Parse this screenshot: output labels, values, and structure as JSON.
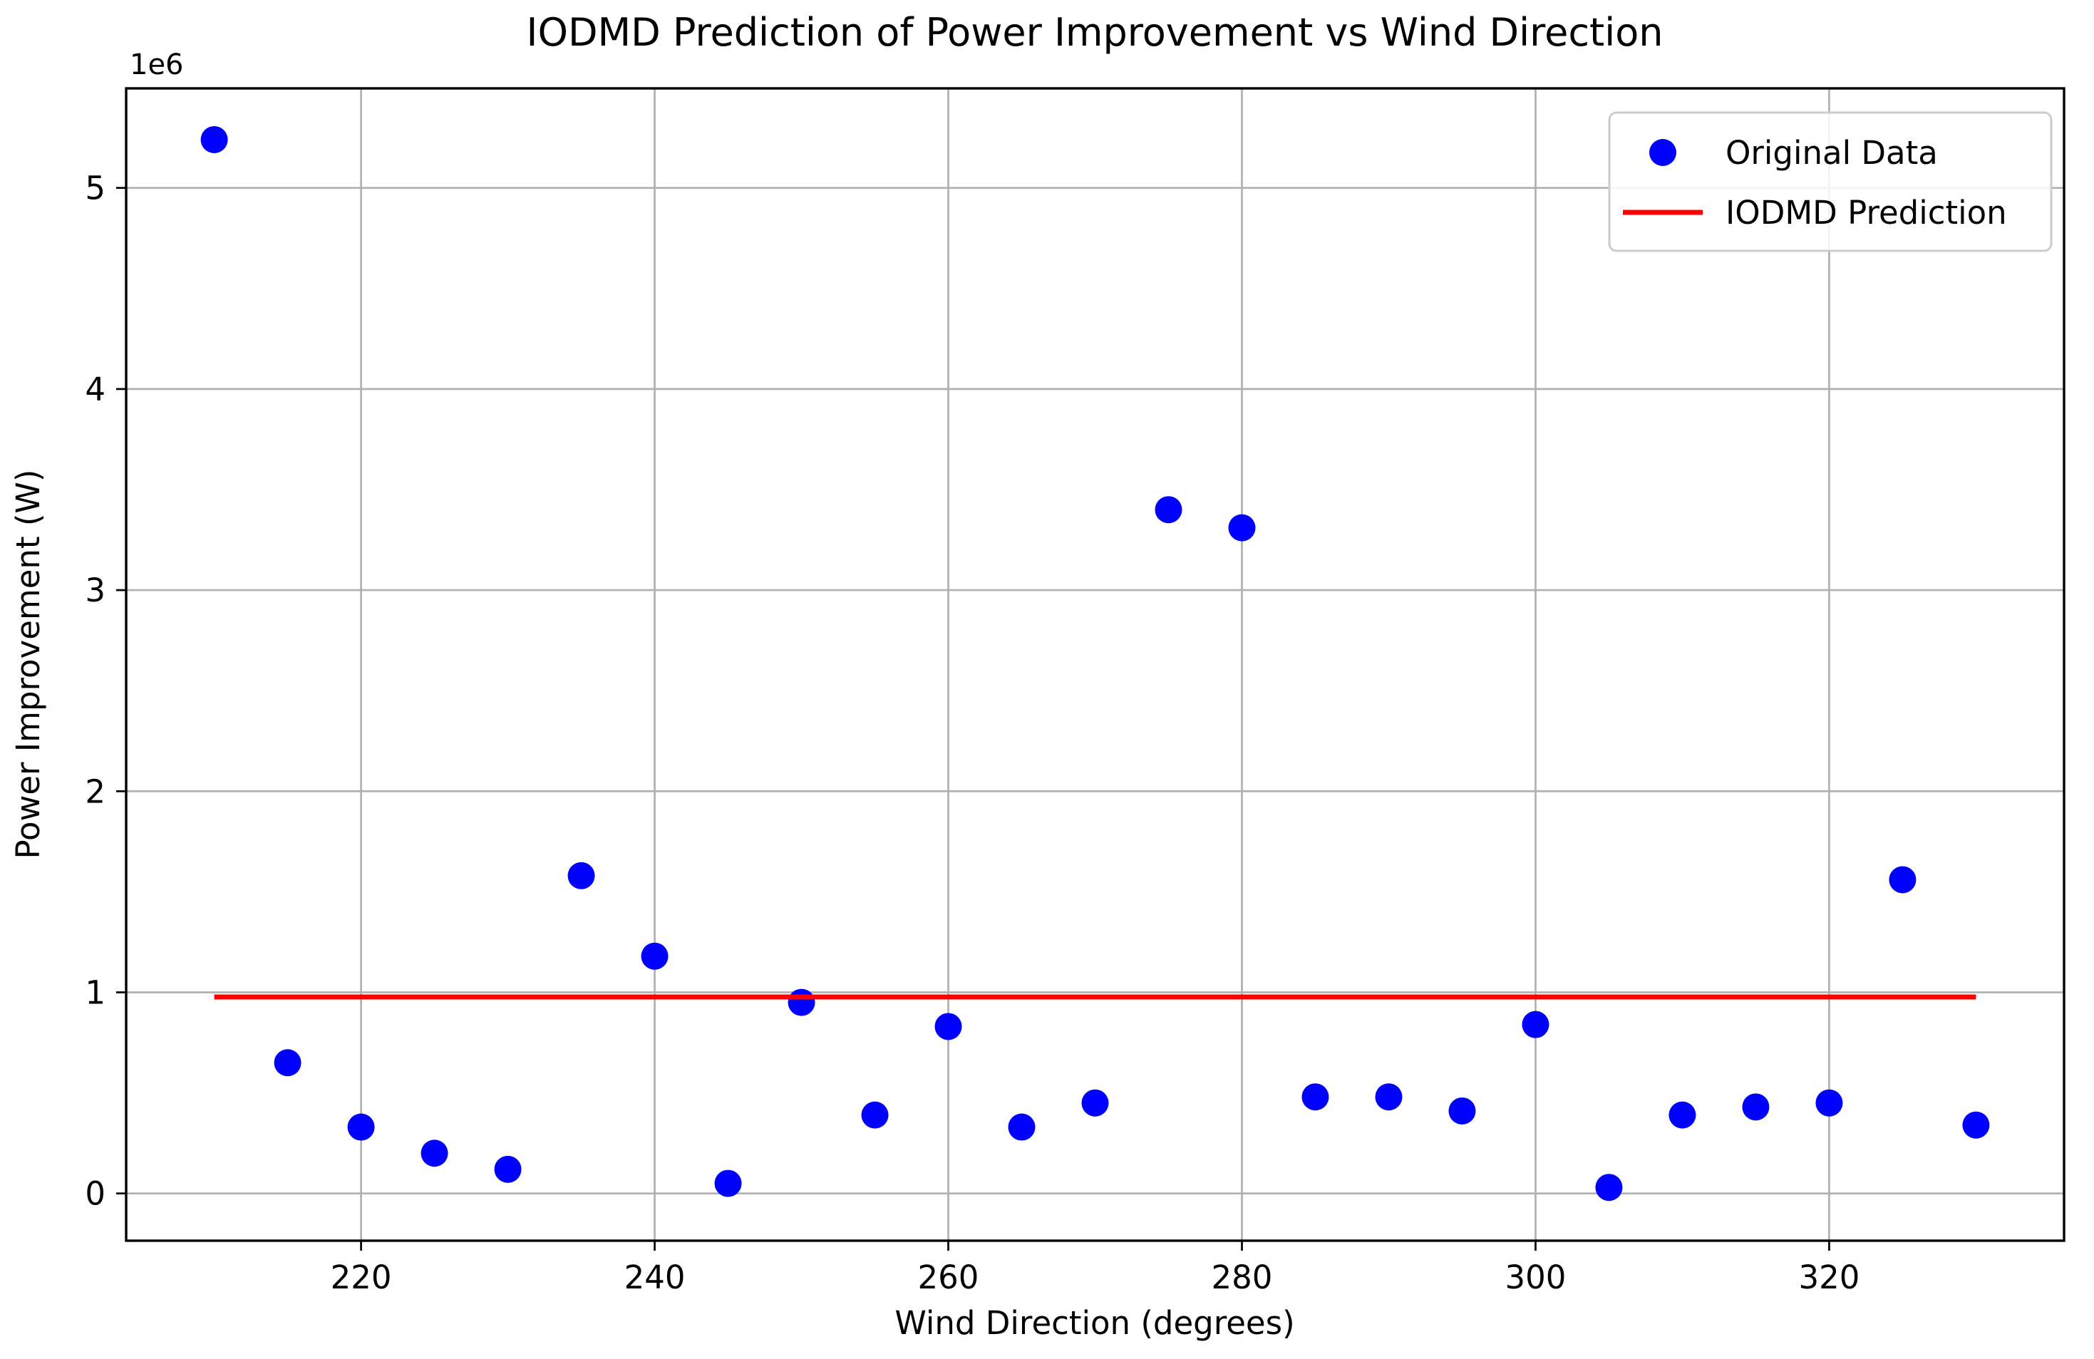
{
  "chart_data": {
    "type": "scatter",
    "title": "IODMD Prediction of Power Improvement vs Wind Direction",
    "xlabel": "Wind Direction (degrees)",
    "ylabel": "Power Improvement (W)",
    "y_offset_label": "1e6",
    "grid": true,
    "xlim": [
      204,
      336
    ],
    "ylim": [
      -235000,
      5495000
    ],
    "x_ticks": [
      220,
      240,
      260,
      280,
      300,
      320
    ],
    "x_tick_labels": [
      "220",
      "240",
      "260",
      "280",
      "300",
      "320"
    ],
    "y_ticks": [
      0,
      1000000,
      2000000,
      3000000,
      4000000,
      5000000
    ],
    "y_tick_labels": [
      "0",
      "1",
      "2",
      "3",
      "4",
      "5"
    ],
    "colors": {
      "scatter": "#0000ff",
      "prediction_line": "#ff0000",
      "grid": "#b0b0b0",
      "spine": "#000000",
      "legend_border": "#cccccc"
    },
    "legend": {
      "position": "upper right",
      "entries": [
        {
          "label": "Original Data",
          "type": "marker",
          "color": "#0000ff"
        },
        {
          "label": "IODMD Prediction",
          "type": "line",
          "color": "#ff0000"
        }
      ]
    },
    "series": [
      {
        "name": "Original Data",
        "type": "scatter",
        "color": "#0000ff",
        "points": [
          [
            210,
            5240000
          ],
          [
            215,
            650000
          ],
          [
            220,
            330000
          ],
          [
            225,
            200000
          ],
          [
            230,
            120000
          ],
          [
            235,
            1580000
          ],
          [
            240,
            1180000
          ],
          [
            245,
            50000
          ],
          [
            250,
            950000
          ],
          [
            255,
            390000
          ],
          [
            260,
            830000
          ],
          [
            265,
            330000
          ],
          [
            270,
            450000
          ],
          [
            275,
            3400000
          ],
          [
            280,
            3310000
          ],
          [
            285,
            480000
          ],
          [
            290,
            480000
          ],
          [
            295,
            410000
          ],
          [
            300,
            840000
          ],
          [
            305,
            30000
          ],
          [
            310,
            390000
          ],
          [
            315,
            430000
          ],
          [
            320,
            450000
          ],
          [
            325,
            1560000
          ],
          [
            330,
            340000
          ]
        ]
      },
      {
        "name": "IODMD Prediction",
        "type": "line",
        "color": "#ff0000",
        "prediction_value": 977000,
        "points": [
          [
            210,
            977000
          ],
          [
            330,
            977000
          ]
        ]
      }
    ]
  }
}
